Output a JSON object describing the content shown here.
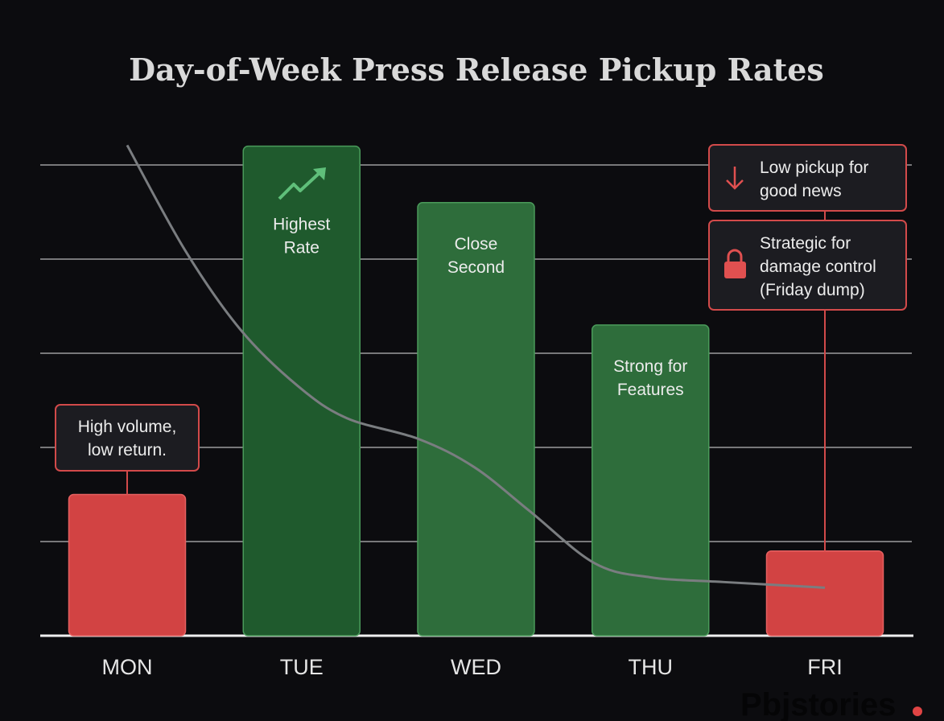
{
  "chart_data": {
    "type": "bar",
    "title": "Day-of-Week Press Release Pickup Rates",
    "xlabel": "",
    "ylabel": "",
    "ylim": [
      0,
      5.5
    ],
    "grid": true,
    "categories": [
      "MON",
      "TUE",
      "WED",
      "THU",
      "FRI"
    ],
    "values": [
      1.5,
      5.2,
      4.6,
      3.3,
      0.9
    ],
    "bar_colors": [
      "#d24343",
      "#1f5a2d",
      "#2e6d3b",
      "#2e6d3b",
      "#d24343"
    ],
    "bar_labels": [
      [],
      [
        "Highest",
        "Rate"
      ],
      [
        "Close",
        "Second"
      ],
      [
        "Strong for",
        "Features"
      ],
      []
    ],
    "trend_line": {
      "x": [
        0,
        0.33,
        0.65,
        0.98,
        1.26,
        1.67,
        1.99,
        2.31,
        2.68,
        3.0,
        3.42,
        4.0
      ],
      "y": [
        5.21,
        4.1,
        3.25,
        2.65,
        2.31,
        2.09,
        1.79,
        1.32,
        0.77,
        0.62,
        0.57,
        0.51
      ],
      "color": "#7a7d80"
    },
    "annotations": [
      {
        "category": "MON",
        "lines": [
          "High volume,",
          "low return."
        ],
        "icon": ""
      },
      {
        "category": "FRI",
        "lines": [
          "Low pickup for",
          "good news"
        ],
        "icon": "arrow-down-icon"
      },
      {
        "category": "FRI",
        "lines": [
          "Strategic for",
          "damage control",
          "(Friday dump)"
        ],
        "icon": "lock-icon"
      }
    ],
    "tue_icon": "trending-up-icon"
  },
  "watermark": "Pbjstories",
  "colors": {
    "background": "#0c0c0f",
    "red": "#d24343",
    "green_icon": "#5fbf7a",
    "annotation_border": "#d24a4a"
  }
}
